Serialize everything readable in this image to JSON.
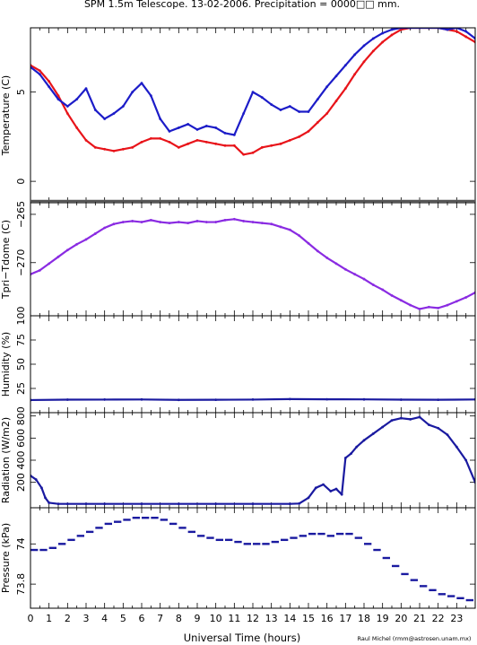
{
  "title": "SPM 1.5m Telescope. 13-02-2006. Precipitation = 0000□□ mm.",
  "credit": "Raul Michel (rmm@astrosen.unam.mx)",
  "colors": {
    "red": "#e8141a",
    "blue": "#1c1cc8",
    "purple": "#8a2be2",
    "navy": "#1a1aa0",
    "axis": "#000000"
  },
  "chart_data": [
    {
      "type": "line",
      "id": "temperature",
      "ylabel": "Temperature (C)",
      "ylim": [
        -1.2,
        8.6
      ],
      "yticks": [
        0,
        5
      ],
      "xlim": [
        0,
        24
      ],
      "series": [
        {
          "color": "red",
          "x": [
            0,
            0.5,
            1,
            1.5,
            2,
            2.5,
            3,
            3.5,
            4,
            4.5,
            5,
            5.5,
            6,
            6.5,
            7,
            7.5,
            8,
            8.5,
            9,
            9.5,
            10,
            10.5,
            11,
            11.5,
            12,
            12.5,
            13,
            13.5,
            14,
            14.5,
            15,
            15.5,
            16,
            16.5,
            17,
            17.5,
            18,
            18.5,
            19,
            19.5,
            20,
            20.5,
            21,
            21.5,
            22,
            22.5,
            23,
            23.5,
            24
          ],
          "y": [
            6.5,
            6.2,
            5.6,
            4.8,
            3.8,
            3.0,
            2.3,
            1.9,
            1.8,
            1.7,
            1.8,
            1.9,
            2.2,
            2.4,
            2.4,
            2.2,
            1.9,
            2.1,
            2.3,
            2.2,
            2.1,
            2.0,
            2.0,
            1.5,
            1.6,
            1.9,
            2.0,
            2.1,
            2.3,
            2.5,
            2.8,
            3.3,
            3.8,
            4.5,
            5.2,
            6.0,
            6.7,
            7.3,
            7.8,
            8.2,
            8.5,
            8.6,
            8.6,
            8.6,
            8.6,
            8.5,
            8.4,
            8.1,
            7.8
          ]
        },
        {
          "color": "blue",
          "x": [
            0,
            0.5,
            1,
            1.5,
            2,
            2.5,
            3,
            3.5,
            4,
            4.5,
            5,
            5.5,
            6,
            6.5,
            7,
            7.5,
            8,
            8.5,
            9,
            9.5,
            10,
            10.5,
            11,
            11.5,
            12,
            12.5,
            13,
            13.5,
            14,
            14.5,
            15,
            15.5,
            16,
            16.5,
            17,
            17.5,
            18,
            18.5,
            19,
            19.5,
            20,
            20.5,
            21,
            21.5,
            22,
            22.5,
            23,
            23.5,
            24
          ],
          "y": [
            6.4,
            6.0,
            5.3,
            4.6,
            4.2,
            4.6,
            5.2,
            4.0,
            3.5,
            3.8,
            4.2,
            5.0,
            5.5,
            4.8,
            3.5,
            2.8,
            3.0,
            3.2,
            2.9,
            3.1,
            3.0,
            2.7,
            2.6,
            3.8,
            5.0,
            4.7,
            4.3,
            4.0,
            4.2,
            3.9,
            3.9,
            4.6,
            5.3,
            5.9,
            6.5,
            7.1,
            7.6,
            8.0,
            8.3,
            8.5,
            8.6,
            8.6,
            8.6,
            8.6,
            8.6,
            8.5,
            8.6,
            8.4,
            8.0
          ]
        }
      ]
    },
    {
      "type": "line",
      "id": "tpri_tdome",
      "ylabel": "Tpri−Tdome (C)",
      "ylim": [
        -275.5,
        -263.8
      ],
      "yticks": [
        -265,
        -270
      ],
      "ytick_labels": [
        "−265",
        "−270"
      ],
      "xlim": [
        0,
        24
      ],
      "series": [
        {
          "color": "purple",
          "x": [
            0,
            0.5,
            1,
            1.5,
            2,
            2.5,
            3,
            3.5,
            4,
            4.5,
            5,
            5.5,
            6,
            6.5,
            7,
            7.5,
            8,
            8.5,
            9,
            9.5,
            10,
            10.5,
            11,
            11.5,
            12,
            12.5,
            13,
            13.5,
            14,
            14.5,
            15,
            15.5,
            16,
            16.5,
            17,
            17.5,
            18,
            18.5,
            19,
            19.5,
            20,
            20.5,
            21,
            21.5,
            22,
            22.5,
            23,
            23.5,
            24
          ],
          "y": [
            -271.2,
            -270.8,
            -270.1,
            -269.4,
            -268.7,
            -268.1,
            -267.6,
            -267.0,
            -266.4,
            -266.0,
            -265.8,
            -265.7,
            -265.8,
            -265.6,
            -265.8,
            -265.9,
            -265.8,
            -265.9,
            -265.7,
            -265.8,
            -265.8,
            -265.6,
            -265.5,
            -265.7,
            -265.8,
            -265.9,
            -266.0,
            -266.3,
            -266.6,
            -267.2,
            -268.0,
            -268.8,
            -269.5,
            -270.1,
            -270.7,
            -271.2,
            -271.7,
            -272.3,
            -272.8,
            -273.4,
            -273.9,
            -274.4,
            -274.8,
            -274.6,
            -274.7,
            -274.4,
            -274.0,
            -273.6,
            -273.1
          ]
        }
      ]
    },
    {
      "type": "line",
      "id": "humidity",
      "ylabel": "Humidity (%)",
      "ylim": [
        0,
        100
      ],
      "yticks": [
        25,
        50,
        75,
        100
      ],
      "xlim": [
        0,
        24
      ],
      "series": [
        {
          "color": "navy",
          "x": [
            0,
            2,
            4,
            6,
            8,
            10,
            12,
            14,
            16,
            18,
            20,
            22,
            24
          ],
          "y": [
            13,
            13.4,
            13.5,
            13.6,
            13.2,
            13.3,
            13.5,
            14,
            13.8,
            13.7,
            13.4,
            13.3,
            13.6
          ]
        }
      ]
    },
    {
      "type": "line",
      "id": "radiation",
      "ylabel": "Radiation (W/m2)",
      "ylim": [
        -30,
        830
      ],
      "yticks": [
        200,
        400,
        600,
        800
      ],
      "xlim": [
        0,
        24
      ],
      "series": [
        {
          "color": "navy",
          "x": [
            0,
            0.3,
            0.6,
            0.8,
            1.0,
            1.5,
            2,
            3,
            4,
            6,
            8,
            10,
            12,
            14,
            14.5,
            15,
            15.4,
            15.8,
            16.2,
            16.5,
            16.8,
            17.0,
            17.3,
            17.6,
            18,
            18.5,
            19,
            19.5,
            20,
            20.5,
            21,
            21.5,
            22,
            22.5,
            23,
            23.5,
            24
          ],
          "y": [
            260,
            225,
            150,
            60,
            15,
            5,
            5,
            5,
            5,
            5,
            5,
            5,
            5,
            5,
            8,
            60,
            150,
            180,
            120,
            140,
            90,
            420,
            460,
            520,
            580,
            640,
            700,
            760,
            780,
            770,
            790,
            720,
            690,
            630,
            520,
            400,
            200
          ]
        }
      ]
    },
    {
      "type": "scatter",
      "id": "pressure",
      "ylabel": "Pressure (kPa)",
      "ylim": [
        73.68,
        74.18
      ],
      "yticks": [
        73.8,
        74
      ],
      "xlim": [
        0,
        24
      ],
      "xticks": [
        0,
        1,
        2,
        3,
        4,
        5,
        6,
        7,
        8,
        9,
        10,
        11,
        12,
        13,
        14,
        15,
        16,
        17,
        18,
        19,
        20,
        21,
        22,
        23
      ],
      "xlabel": "Universal Time (hours)",
      "series": [
        {
          "color": "navy",
          "x": [
            0,
            0.5,
            1,
            1.5,
            2,
            2.5,
            3,
            3.5,
            4,
            4.5,
            5,
            5.5,
            6,
            6.5,
            7,
            7.5,
            8,
            8.5,
            9,
            9.5,
            10,
            10.5,
            11,
            11.5,
            12,
            12.5,
            13,
            13.5,
            14,
            14.5,
            15,
            15.5,
            16,
            16.5,
            17,
            17.5,
            18,
            18.5,
            19,
            19.5,
            20,
            20.5,
            21,
            21.5,
            22,
            22.5,
            23,
            23.5
          ],
          "y": [
            73.97,
            73.97,
            73.98,
            74.0,
            74.02,
            74.04,
            74.06,
            74.08,
            74.1,
            74.11,
            74.12,
            74.13,
            74.13,
            74.13,
            74.12,
            74.1,
            74.08,
            74.06,
            74.04,
            74.03,
            74.02,
            74.02,
            74.01,
            74.0,
            74.0,
            74.0,
            74.01,
            74.02,
            74.03,
            74.04,
            74.05,
            74.05,
            74.04,
            74.05,
            74.05,
            74.03,
            74.0,
            73.97,
            73.93,
            73.89,
            73.85,
            73.82,
            73.79,
            73.77,
            73.75,
            73.74,
            73.73,
            73.72
          ]
        }
      ]
    }
  ]
}
